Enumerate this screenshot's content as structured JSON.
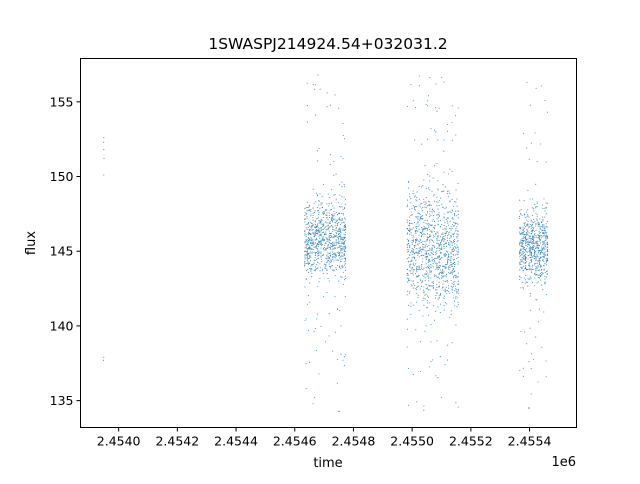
{
  "chart_data": {
    "type": "scatter",
    "title": "1SWASPJ214924.54+032031.2",
    "xlabel": "time",
    "ylabel": "flux",
    "x_offset_label": "1e6",
    "xlim": [
      2453870,
      2455560
    ],
    "ylim": [
      133.2,
      157.9
    ],
    "grid": false,
    "legend": "none",
    "marker_color": "#1f77b4",
    "xticks": [
      2454000,
      2454200,
      2454400,
      2454600,
      2454800,
      2455000,
      2455200,
      2455400
    ],
    "xtick_labels": [
      "2.4540",
      "2.4542",
      "2.4544",
      "2.4546",
      "2.4548",
      "2.4550",
      "2.4552",
      "2.4554"
    ],
    "yticks": [
      135,
      140,
      145,
      150,
      155
    ],
    "ytick_labels": [
      "135",
      "140",
      "145",
      "150",
      "155"
    ],
    "note_points_are_approximate_clusters": true,
    "clusters": [
      {
        "time_range": [
          2453948,
          2453950
        ],
        "flux_points": [
          152.6,
          152.3,
          151.8,
          151.2,
          150.1,
          137.9,
          137.7
        ]
      },
      {
        "time_range": [
          2454634,
          2454776
        ],
        "core_flux": [
          143.5,
          148.5
        ],
        "center": 145.8,
        "outlier_range": [
          134.2,
          156.8
        ],
        "count": 900
      },
      {
        "time_range": [
          2454983,
          2455160
        ],
        "core_flux": [
          141.5,
          149.3
        ],
        "center": 145.2,
        "outlier_range": [
          134.3,
          156.8
        ],
        "count": 1100
      },
      {
        "time_range": [
          2455366,
          2455464
        ],
        "core_flux": [
          143.0,
          148.0
        ],
        "center": 145.4,
        "outlier_range": [
          134.2,
          156.5
        ],
        "count": 700
      }
    ]
  }
}
